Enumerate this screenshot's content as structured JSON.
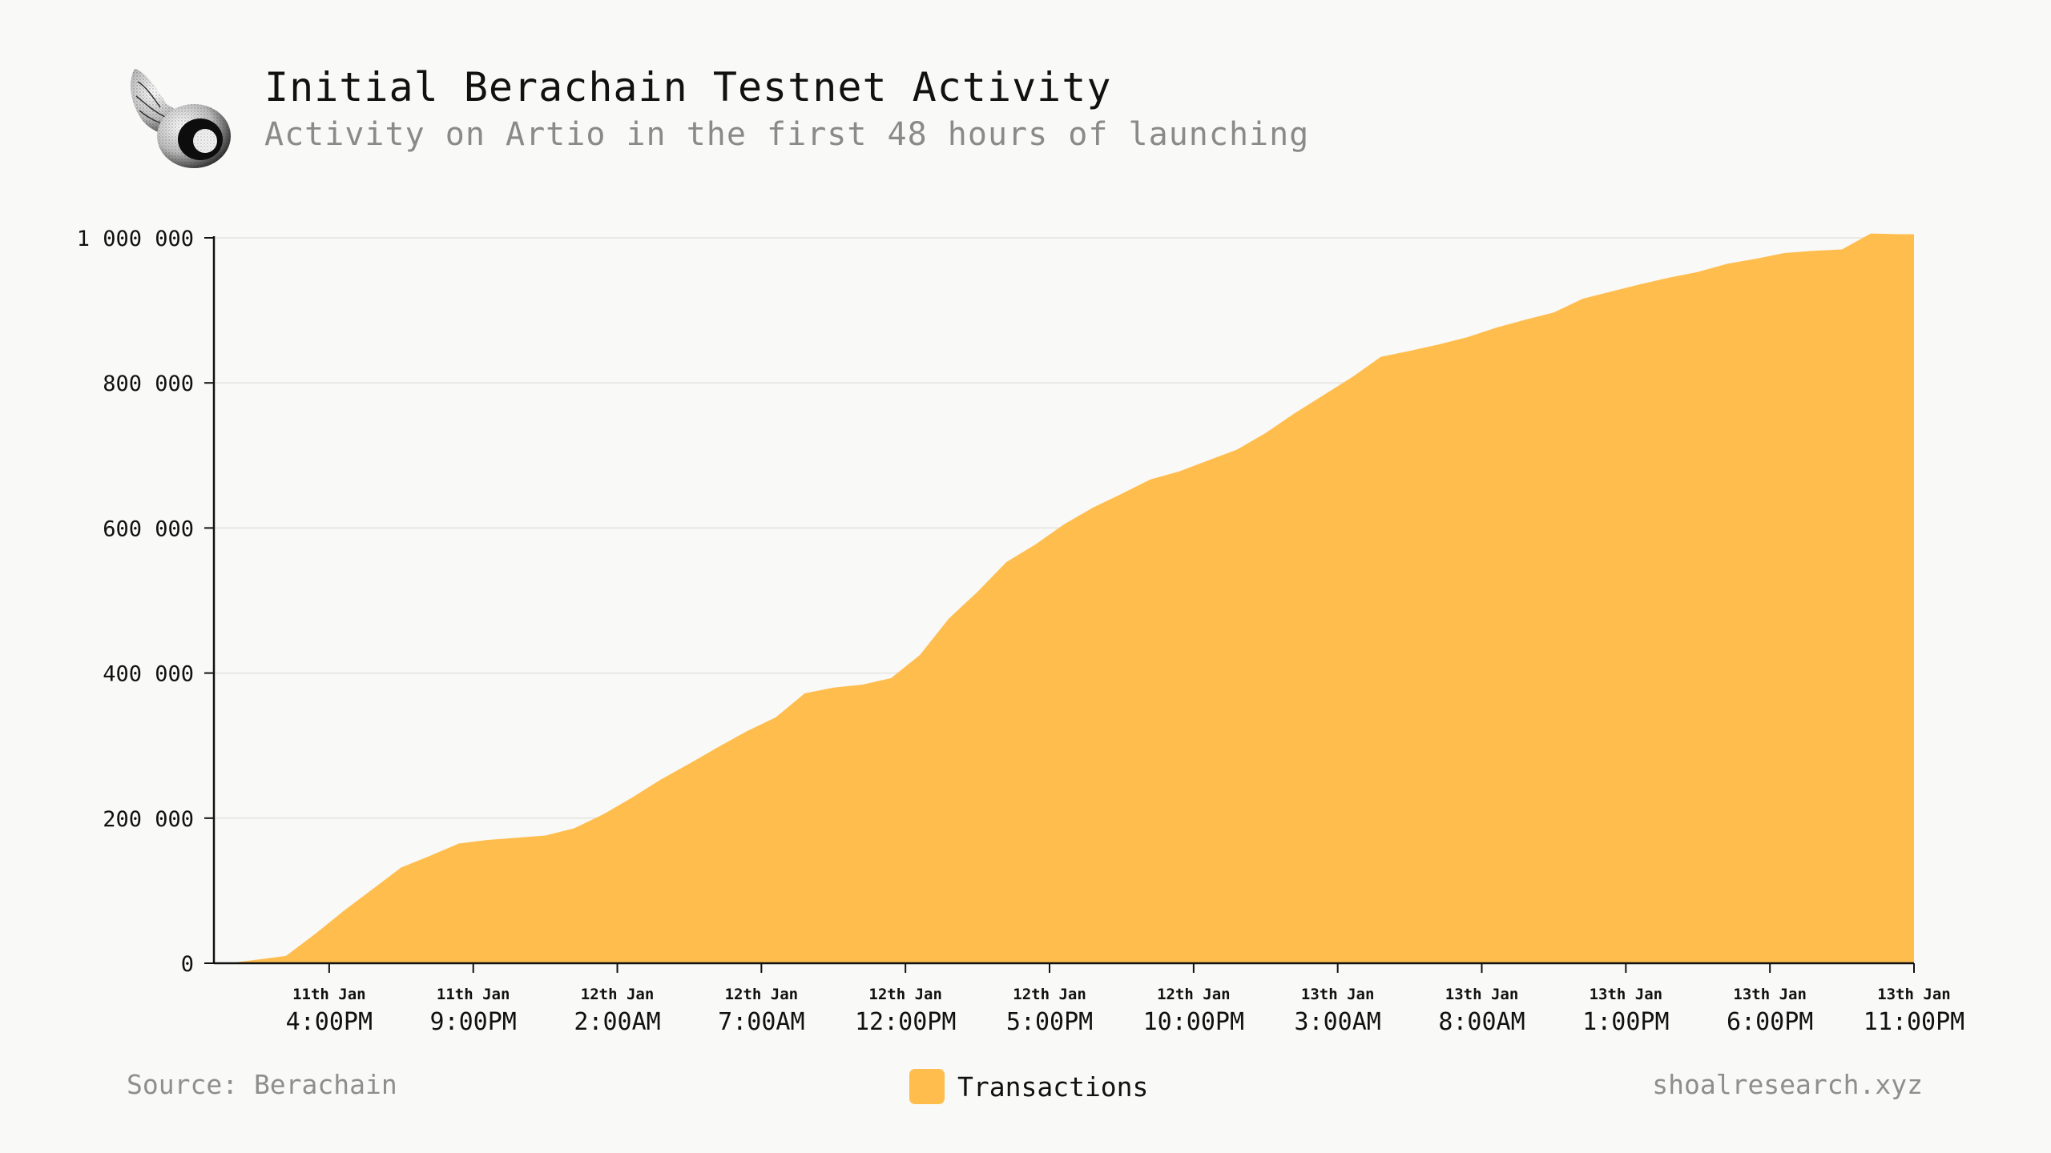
{
  "header": {
    "title": "Initial Berachain Testnet Activity",
    "subtitle": "Activity on Artio in the first 48 hours of launching"
  },
  "footer": {
    "source": "Source: Berachain",
    "site": "shoalresearch.xyz"
  },
  "colors": {
    "area": "#ffbd4e",
    "text": "#111111",
    "muted": "#8a8a8a",
    "grid": "#e8e8e6",
    "background": "#f9f9f7"
  },
  "icons": {
    "logo": "seashell-icon"
  },
  "chart_data": {
    "type": "area",
    "title": "Initial Berachain Testnet Activity",
    "subtitle": "Activity on Artio in the first 48 hours of launching",
    "xlabel": "",
    "ylabel": "",
    "ylim": [
      0,
      1000000
    ],
    "yticks": [
      0,
      200000,
      400000,
      600000,
      800000,
      1000000
    ],
    "ytick_labels": [
      "0",
      "200 000",
      "400 000",
      "600 000",
      "800 000",
      "1 000 000"
    ],
    "grid": true,
    "legend": "bottom-center",
    "x_ticks": [
      {
        "hour": 16,
        "date": "11th Jan",
        "time": "4:00PM"
      },
      {
        "hour": 21,
        "date": "11th Jan",
        "time": "9:00PM"
      },
      {
        "hour": 26,
        "date": "12th Jan",
        "time": "2:00AM"
      },
      {
        "hour": 31,
        "date": "12th Jan",
        "time": "7:00AM"
      },
      {
        "hour": 36,
        "date": "12th Jan",
        "time": "12:00PM"
      },
      {
        "hour": 41,
        "date": "12th Jan",
        "time": "5:00PM"
      },
      {
        "hour": 46,
        "date": "12th Jan",
        "time": "10:00PM"
      },
      {
        "hour": 51,
        "date": "13th Jan",
        "time": "3:00AM"
      },
      {
        "hour": 56,
        "date": "13th Jan",
        "time": "8:00AM"
      },
      {
        "hour": 61,
        "date": "13th Jan",
        "time": "1:00PM"
      },
      {
        "hour": 66,
        "date": "13th Jan",
        "time": "6:00PM"
      },
      {
        "hour": 71,
        "date": "13th Jan",
        "time": "11:00PM"
      }
    ],
    "series": [
      {
        "name": "Transactions",
        "x": [
          12.5,
          13.5,
          14.5,
          15.5,
          16.5,
          17.5,
          18.5,
          19.5,
          20.5,
          21.5,
          22.5,
          23.5,
          24.5,
          25.5,
          26.5,
          27.5,
          28.5,
          29.5,
          30.5,
          31.5,
          32.5,
          33.5,
          34.5,
          35.5,
          36.5,
          37.5,
          38.5,
          39.5,
          40.5,
          41.5,
          42.5,
          43.5,
          44.5,
          45.5,
          46.5,
          47.5,
          48.5,
          49.5,
          50.5,
          51.5,
          52.5,
          53.5,
          54.5,
          55.5,
          56.5,
          57.5,
          58.5,
          59.5,
          60.5,
          61.5,
          62.5,
          63.5,
          64.5,
          65.5,
          66.5,
          67.5,
          68.5,
          69.5,
          70.5,
          71.0
        ],
        "values": [
          0,
          5000,
          10000,
          40000,
          72000,
          102000,
          132000,
          148000,
          165000,
          170000,
          173000,
          176000,
          186000,
          205000,
          228000,
          253000,
          275000,
          298000,
          320000,
          339000,
          372000,
          380000,
          384000,
          393000,
          425000,
          475000,
          512000,
          553000,
          577000,
          605000,
          628000,
          647000,
          667000,
          678000,
          693000,
          708000,
          731000,
          758000,
          783000,
          808000,
          836000,
          844000,
          853000,
          863000,
          876000,
          887000,
          897000,
          916000,
          926000,
          936000,
          945000,
          953000,
          964000,
          971000,
          979000,
          982000,
          984000,
          1006000,
          1005000,
          1005000
        ]
      }
    ]
  }
}
